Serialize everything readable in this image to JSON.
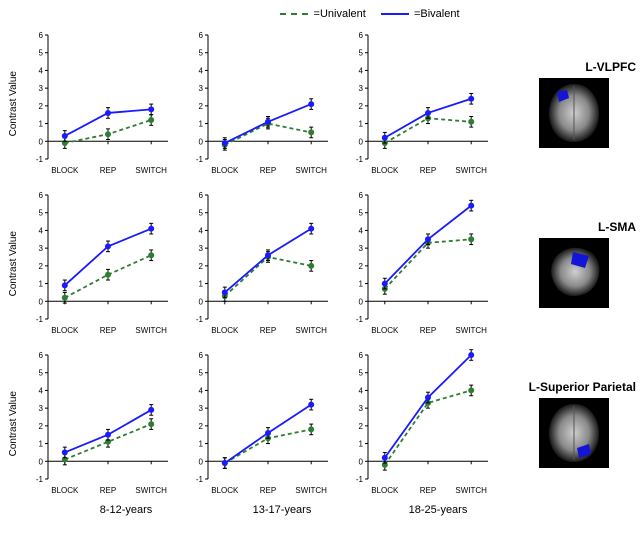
{
  "legend": {
    "univalent": "=Univalent",
    "bivalent": "=Bivalent"
  },
  "colors": {
    "univalent": "#2e7d32",
    "bivalent": "#1a1aff",
    "axis": "#000000",
    "background": "#ffffff",
    "roi_fill": "#1414d6"
  },
  "line_styles": {
    "univalent": "dashed",
    "bivalent": "solid"
  },
  "ylabel": "Contrast Value",
  "xcats": [
    "BLOCK",
    "REP",
    "SWITCH"
  ],
  "age_groups": [
    "8-12-years",
    "13-17-years",
    "18-25-years"
  ],
  "regions": [
    "L-VLPFC",
    "L-SMA",
    "L-Superior Parietal"
  ],
  "ylims": [
    [
      -1,
      6
    ],
    [
      -1,
      6
    ],
    [
      -1,
      6
    ]
  ],
  "ytick_step": 1,
  "error_bar": 0.3,
  "marker_size": 3,
  "series": {
    "r0": {
      "c0": {
        "bi": [
          0.3,
          1.6,
          1.8
        ],
        "uni": [
          -0.1,
          0.4,
          1.2
        ]
      },
      "c1": {
        "bi": [
          -0.1,
          1.1,
          2.1
        ],
        "uni": [
          -0.2,
          1.0,
          0.5
        ]
      },
      "c2": {
        "bi": [
          0.2,
          1.6,
          2.4
        ],
        "uni": [
          -0.1,
          1.3,
          1.1
        ]
      }
    },
    "r1": {
      "c0": {
        "bi": [
          0.9,
          3.1,
          4.1
        ],
        "uni": [
          0.2,
          1.5,
          2.6
        ]
      },
      "c1": {
        "bi": [
          0.5,
          2.6,
          4.1
        ],
        "uni": [
          0.3,
          2.5,
          2.0
        ]
      },
      "c2": {
        "bi": [
          1.0,
          3.5,
          5.4
        ],
        "uni": [
          0.7,
          3.3,
          3.5
        ]
      }
    },
    "r2": {
      "c0": {
        "bi": [
          0.5,
          1.5,
          2.9
        ],
        "uni": [
          0.1,
          1.1,
          2.1
        ]
      },
      "c1": {
        "bi": [
          -0.1,
          1.6,
          3.2
        ],
        "uni": [
          -0.1,
          1.3,
          1.8
        ]
      },
      "c2": {
        "bi": [
          0.2,
          3.6,
          6.0
        ],
        "uni": [
          -0.2,
          3.3,
          4.0
        ]
      }
    }
  },
  "brain_views": [
    "axial",
    "sagittal",
    "axial"
  ],
  "fontsize": {
    "tick": 8,
    "label": 10,
    "region": 12,
    "legend": 11
  }
}
